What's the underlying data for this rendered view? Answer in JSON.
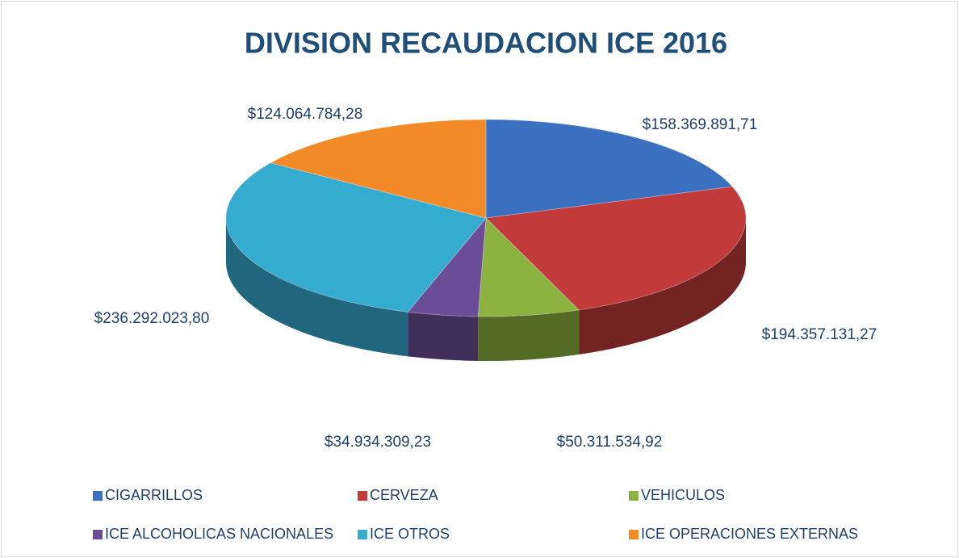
{
  "chart_data": {
    "type": "pie",
    "title": "DIVISION RECAUDACION ICE 2016",
    "categories": [
      "CIGARRILLOS",
      "CERVEZA",
      "VEHICULOS",
      "ICE ALCOHOLICAS NACIONALES",
      "ICE OTROS",
      "ICE OPERACIONES EXTERNAS"
    ],
    "values": [
      158369891.71,
      194357131.27,
      50311534.92,
      34934309.23,
      236292023.8,
      124064784.28
    ],
    "value_labels": [
      "$158.369.891,71",
      "$194.357.131,27",
      "$50.311.534,92",
      "$34.934.309,23",
      "$236.292.023,80",
      "$124.064.784,28"
    ],
    "colors": [
      "#3b6fbf",
      "#c23a3a",
      "#8cb23f",
      "#6b4d97",
      "#35abd0",
      "#f18a27"
    ],
    "legend": "bottom"
  }
}
